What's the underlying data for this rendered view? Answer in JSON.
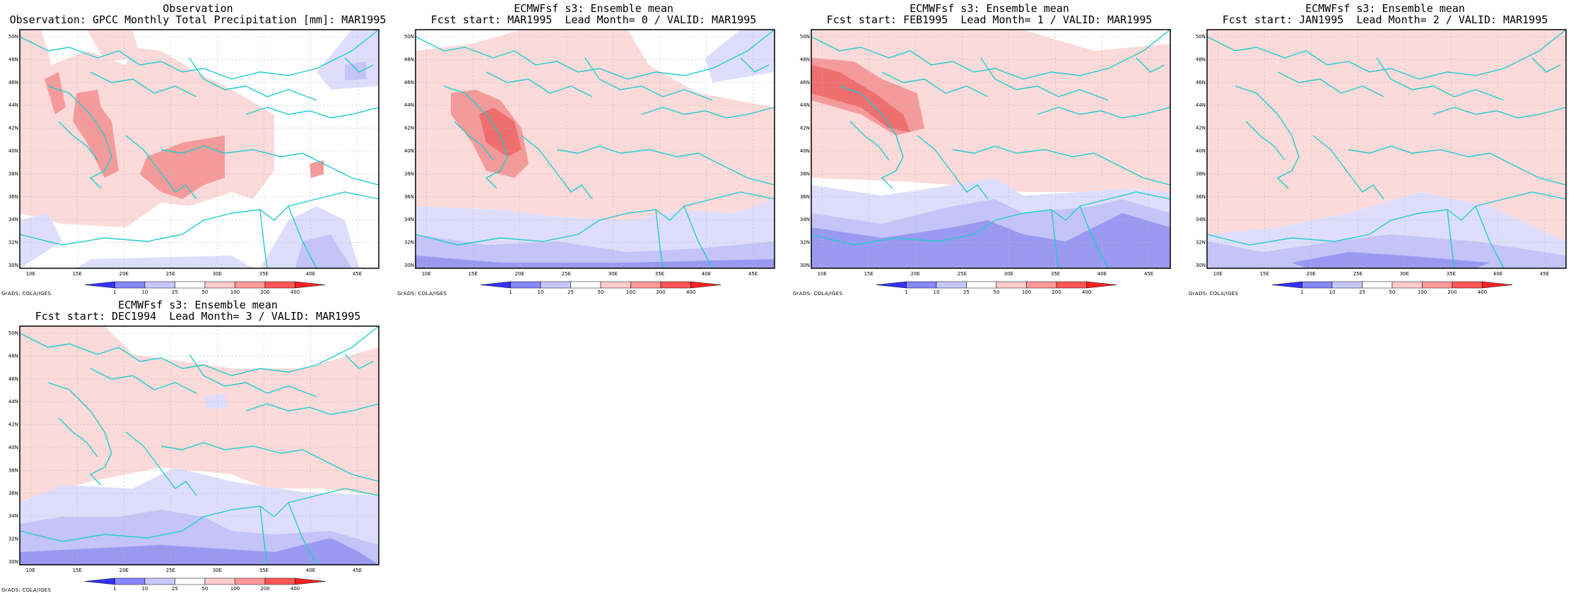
{
  "colorbar": {
    "labels": [
      "1",
      "10",
      "25",
      "50",
      "100",
      "200",
      "400"
    ],
    "colors": [
      "#3333ff",
      "#8888ff",
      "#c8c8ff",
      "#ffffff",
      "#ffcccc",
      "#ff9999",
      "#ff5555",
      "#ff2222"
    ]
  },
  "x_axis_labels": [
    "10E",
    "15E",
    "20E",
    "25E",
    "30E",
    "35E",
    "40E",
    "45E"
  ],
  "y_axis_labels": [
    "30N",
    "32N",
    "34N",
    "36N",
    "38N",
    "40N",
    "42N",
    "44N",
    "46N",
    "48N",
    "50N"
  ],
  "credit": "GrADS: COLA/IGES",
  "colors": {
    "coast": "#22cccc",
    "grid": "#bbbbbb",
    "blue_dark": "#9999f2",
    "blue_mid": "#c4c4f8",
    "blue_light": "#dedefc",
    "red_light": "#fcdada",
    "red_mid": "#f59a9a",
    "red_dark": "#ef6e6e"
  },
  "panels": [
    {
      "title_line1": "Observation",
      "title_line2": "Observation: GPCC Monthly Total Precipitation [mm]: MAR1995"
    },
    {
      "title_line1": "ECMWFsf s3: Ensemble mean",
      "title_line2": "Fcst start: MAR1995  Lead Month= 0 / VALID: MAR1995"
    },
    {
      "title_line1": "ECMWFsf s3: Ensemble mean",
      "title_line2": "Fcst start: FEB1995  Lead Month= 1 / VALID: MAR1995"
    },
    {
      "title_line1": "ECMWFsf s3: Ensemble mean",
      "title_line2": "Fcst start: JAN1995  Lead Month= 2 / VALID: MAR1995"
    },
    {
      "title_line1": "ECMWFsf s3: Ensemble mean",
      "title_line2": "Fcst start: DEC1994  Lead Month= 3 / VALID: MAR1995"
    }
  ]
}
